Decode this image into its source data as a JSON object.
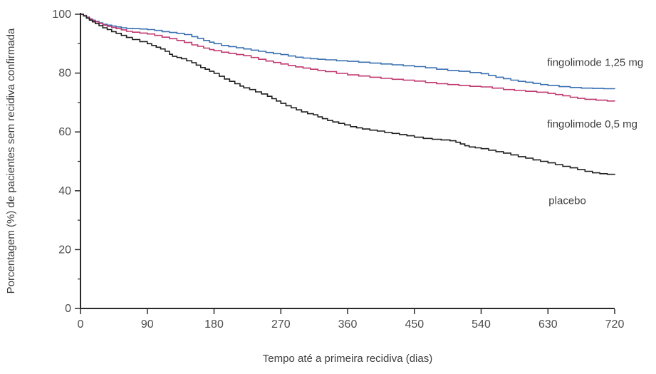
{
  "chart_data": {
    "type": "line",
    "subtype": "kaplan-meier-step",
    "title": "",
    "xlabel": "Tempo até a primeira recidiva (dias)",
    "ylabel": "Porcentagem (%) de pacientes sem recidiva confirmada",
    "xlim": [
      0,
      720
    ],
    "ylim": [
      0,
      100
    ],
    "x_ticks": [
      0,
      90,
      180,
      270,
      360,
      450,
      540,
      630,
      720
    ],
    "y_ticks": [
      0,
      20,
      40,
      60,
      80,
      100
    ],
    "y_minor_ticks": [
      10,
      30,
      50,
      70,
      90
    ],
    "grid": false,
    "legend_position": "inline-right-annotations",
    "axis_color": "#2a2a2a",
    "tick_label_color": "#4d4d4d",
    "series": [
      {
        "name": "fingolimode 1,25 mg",
        "color": "#3a70b2",
        "points": [
          [
            0,
            100
          ],
          [
            4,
            99.6
          ],
          [
            8,
            99.0
          ],
          [
            12,
            98.4
          ],
          [
            16,
            98.0
          ],
          [
            20,
            97.6
          ],
          [
            25,
            97.1
          ],
          [
            30,
            96.6
          ],
          [
            36,
            96.3
          ],
          [
            42,
            96.0
          ],
          [
            48,
            95.7
          ],
          [
            55,
            95.4
          ],
          [
            62,
            95.2
          ],
          [
            70,
            95.1
          ],
          [
            80,
            95.0
          ],
          [
            90,
            94.8
          ],
          [
            100,
            94.5
          ],
          [
            110,
            94.1
          ],
          [
            120,
            93.8
          ],
          [
            130,
            93.5
          ],
          [
            140,
            93.1
          ],
          [
            150,
            92.4
          ],
          [
            158,
            91.8
          ],
          [
            166,
            91.1
          ],
          [
            174,
            90.5
          ],
          [
            180,
            90.0
          ],
          [
            190,
            89.4
          ],
          [
            200,
            89.0
          ],
          [
            210,
            88.6
          ],
          [
            220,
            88.2
          ],
          [
            230,
            87.8
          ],
          [
            240,
            87.4
          ],
          [
            250,
            87.0
          ],
          [
            260,
            86.6
          ],
          [
            270,
            86.3
          ],
          [
            280,
            85.8
          ],
          [
            290,
            85.4
          ],
          [
            300,
            85.1
          ],
          [
            310,
            84.9
          ],
          [
            320,
            84.7
          ],
          [
            330,
            84.5
          ],
          [
            345,
            84.2
          ],
          [
            360,
            84.0
          ],
          [
            375,
            83.7
          ],
          [
            390,
            83.4
          ],
          [
            405,
            83.1
          ],
          [
            420,
            82.8
          ],
          [
            435,
            82.5
          ],
          [
            450,
            82.2
          ],
          [
            465,
            81.8
          ],
          [
            480,
            81.3
          ],
          [
            495,
            80.9
          ],
          [
            510,
            80.6
          ],
          [
            525,
            80.2
          ],
          [
            540,
            79.8
          ],
          [
            550,
            79.2
          ],
          [
            560,
            78.6
          ],
          [
            570,
            78.1
          ],
          [
            580,
            77.6
          ],
          [
            590,
            77.2
          ],
          [
            600,
            76.9
          ],
          [
            610,
            76.5
          ],
          [
            620,
            76.1
          ],
          [
            630,
            75.8
          ],
          [
            645,
            75.4
          ],
          [
            660,
            75.1
          ],
          [
            675,
            74.9
          ],
          [
            690,
            74.8
          ],
          [
            705,
            74.7
          ],
          [
            720,
            74.6
          ]
        ]
      },
      {
        "name": "fingolimode 0,5 mg",
        "color": "#c0386f",
        "points": [
          [
            0,
            100
          ],
          [
            4,
            99.5
          ],
          [
            8,
            98.9
          ],
          [
            12,
            98.3
          ],
          [
            16,
            97.8
          ],
          [
            20,
            97.4
          ],
          [
            25,
            96.9
          ],
          [
            30,
            96.3
          ],
          [
            36,
            95.9
          ],
          [
            42,
            95.5
          ],
          [
            48,
            95.1
          ],
          [
            55,
            94.7
          ],
          [
            62,
            94.2
          ],
          [
            70,
            93.9
          ],
          [
            80,
            93.6
          ],
          [
            90,
            93.3
          ],
          [
            100,
            92.8
          ],
          [
            110,
            92.2
          ],
          [
            120,
            91.7
          ],
          [
            130,
            91.1
          ],
          [
            140,
            90.4
          ],
          [
            150,
            89.6
          ],
          [
            158,
            89.1
          ],
          [
            166,
            88.5
          ],
          [
            174,
            88.0
          ],
          [
            180,
            87.6
          ],
          [
            190,
            87.1
          ],
          [
            200,
            86.7
          ],
          [
            210,
            86.3
          ],
          [
            220,
            85.9
          ],
          [
            230,
            85.3
          ],
          [
            240,
            84.7
          ],
          [
            250,
            84.1
          ],
          [
            260,
            83.6
          ],
          [
            270,
            83.1
          ],
          [
            280,
            82.6
          ],
          [
            290,
            82.1
          ],
          [
            300,
            81.7
          ],
          [
            310,
            81.3
          ],
          [
            320,
            80.9
          ],
          [
            330,
            80.5
          ],
          [
            345,
            79.9
          ],
          [
            360,
            79.4
          ],
          [
            375,
            79.0
          ],
          [
            390,
            78.6
          ],
          [
            405,
            78.2
          ],
          [
            420,
            77.9
          ],
          [
            435,
            77.6
          ],
          [
            450,
            77.3
          ],
          [
            465,
            76.8
          ],
          [
            480,
            76.4
          ],
          [
            495,
            76.1
          ],
          [
            510,
            75.8
          ],
          [
            525,
            75.5
          ],
          [
            540,
            75.3
          ],
          [
            555,
            74.9
          ],
          [
            570,
            74.4
          ],
          [
            585,
            74.1
          ],
          [
            600,
            73.8
          ],
          [
            615,
            73.5
          ],
          [
            630,
            73.1
          ],
          [
            640,
            72.7
          ],
          [
            650,
            72.3
          ],
          [
            660,
            71.8
          ],
          [
            670,
            71.4
          ],
          [
            680,
            71.1
          ],
          [
            695,
            70.8
          ],
          [
            710,
            70.5
          ],
          [
            720,
            70.4
          ]
        ]
      },
      {
        "name": "placebo",
        "color": "#1f1f1f",
        "points": [
          [
            0,
            100
          ],
          [
            4,
            99.4
          ],
          [
            8,
            98.7
          ],
          [
            12,
            98.0
          ],
          [
            16,
            97.4
          ],
          [
            20,
            96.8
          ],
          [
            25,
            96.1
          ],
          [
            30,
            95.4
          ],
          [
            36,
            94.8
          ],
          [
            42,
            94.1
          ],
          [
            48,
            93.5
          ],
          [
            55,
            92.8
          ],
          [
            62,
            92.1
          ],
          [
            70,
            91.4
          ],
          [
            80,
            90.7
          ],
          [
            90,
            90.0
          ],
          [
            96,
            89.4
          ],
          [
            102,
            88.8
          ],
          [
            108,
            88.2
          ],
          [
            114,
            87.4
          ],
          [
            120,
            86.4
          ],
          [
            124,
            85.7
          ],
          [
            130,
            85.3
          ],
          [
            136,
            84.9
          ],
          [
            143,
            84.2
          ],
          [
            150,
            83.5
          ],
          [
            156,
            82.7
          ],
          [
            162,
            81.9
          ],
          [
            168,
            81.3
          ],
          [
            174,
            80.6
          ],
          [
            180,
            79.9
          ],
          [
            187,
            78.9
          ],
          [
            194,
            78.0
          ],
          [
            201,
            77.2
          ],
          [
            208,
            76.4
          ],
          [
            215,
            75.6
          ],
          [
            220,
            75.0
          ],
          [
            228,
            74.4
          ],
          [
            236,
            73.6
          ],
          [
            244,
            72.9
          ],
          [
            252,
            72.1
          ],
          [
            258,
            71.3
          ],
          [
            264,
            70.5
          ],
          [
            270,
            69.7
          ],
          [
            277,
            68.9
          ],
          [
            284,
            68.2
          ],
          [
            291,
            67.5
          ],
          [
            298,
            66.8
          ],
          [
            306,
            66.2
          ],
          [
            314,
            65.8
          ],
          [
            320,
            65.1
          ],
          [
            326,
            64.5
          ],
          [
            333,
            63.9
          ],
          [
            340,
            63.4
          ],
          [
            348,
            62.9
          ],
          [
            356,
            62.4
          ],
          [
            364,
            61.8
          ],
          [
            372,
            61.4
          ],
          [
            380,
            61.0
          ],
          [
            390,
            60.6
          ],
          [
            400,
            60.3
          ],
          [
            410,
            59.8
          ],
          [
            420,
            59.5
          ],
          [
            430,
            59.1
          ],
          [
            440,
            58.7
          ],
          [
            450,
            58.2
          ],
          [
            462,
            57.8
          ],
          [
            474,
            57.5
          ],
          [
            486,
            57.3
          ],
          [
            498,
            57.0
          ],
          [
            506,
            56.5
          ],
          [
            512,
            55.9
          ],
          [
            518,
            55.3
          ],
          [
            524,
            54.9
          ],
          [
            532,
            54.6
          ],
          [
            540,
            54.3
          ],
          [
            550,
            53.8
          ],
          [
            560,
            53.3
          ],
          [
            570,
            52.8
          ],
          [
            580,
            52.2
          ],
          [
            590,
            51.6
          ],
          [
            600,
            51.1
          ],
          [
            610,
            50.5
          ],
          [
            620,
            50.0
          ],
          [
            630,
            49.5
          ],
          [
            640,
            48.9
          ],
          [
            650,
            48.3
          ],
          [
            660,
            47.8
          ],
          [
            670,
            47.2
          ],
          [
            680,
            46.6
          ],
          [
            690,
            46.1
          ],
          [
            700,
            45.8
          ],
          [
            710,
            45.6
          ],
          [
            720,
            45.4
          ]
        ]
      }
    ],
    "annotations": [
      {
        "text": "fingolimode 1,25 mg",
        "x": 629,
        "y": 82.5
      },
      {
        "text": "fingolimode 0,5 mg",
        "x": 629,
        "y": 61.5
      },
      {
        "text": "placebo",
        "x": 631,
        "y": 35.5
      }
    ]
  }
}
